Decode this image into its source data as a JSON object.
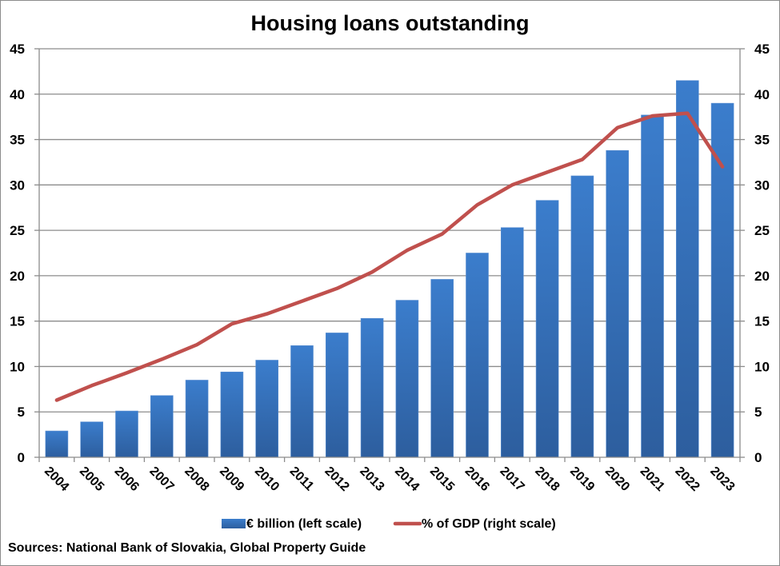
{
  "chart_data": {
    "type": "bar",
    "title": "Housing loans outstanding",
    "xlabel": "",
    "ylabel": "",
    "ylabel_right": "",
    "ylim": [
      0,
      45
    ],
    "ylim_right": [
      0,
      45
    ],
    "yticks": [
      0,
      5,
      10,
      15,
      20,
      25,
      30,
      35,
      40,
      45
    ],
    "yticks_right": [
      0,
      5,
      10,
      15,
      20,
      25,
      30,
      35,
      40,
      45
    ],
    "grid": true,
    "legend_position": "bottom",
    "categories": [
      "2004",
      "2005",
      "2006",
      "2007",
      "2008",
      "2009",
      "2010",
      "2011",
      "2012",
      "2013",
      "2014",
      "2015",
      "2016",
      "2017",
      "2018",
      "2019",
      "2020",
      "2021",
      "2022",
      "2023"
    ],
    "series": [
      {
        "name": "€ billion (left scale)",
        "type": "bar",
        "axis": "left",
        "color": "#3a78c3",
        "values": [
          2.9,
          3.9,
          5.1,
          6.8,
          8.5,
          9.4,
          10.7,
          12.3,
          13.7,
          15.3,
          17.3,
          19.6,
          22.5,
          25.3,
          28.3,
          31.0,
          33.8,
          37.7,
          41.5,
          39.0
        ]
      },
      {
        "name": "% of GDP (right scale)",
        "type": "line",
        "axis": "right",
        "color": "#c0504d",
        "values": [
          6.3,
          7.9,
          9.3,
          10.8,
          12.4,
          14.7,
          15.8,
          17.2,
          18.6,
          20.4,
          22.8,
          24.6,
          27.8,
          30.0,
          31.4,
          32.8,
          36.3,
          37.6,
          37.9,
          32.0
        ]
      }
    ],
    "source": "Sources: National Bank of Slovakia, Global Property Guide"
  }
}
